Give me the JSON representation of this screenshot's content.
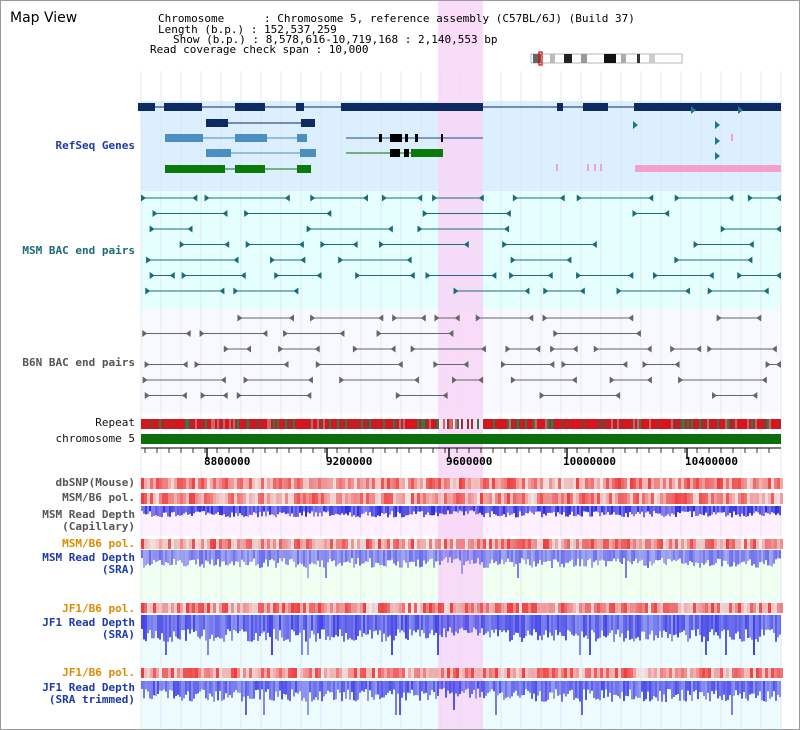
{
  "header": {
    "title": "Map View",
    "info_lines": [
      "Chromosome      : Chromosome 5, reference assembly (C57BL/6J) (Build 37)",
      "Length (b.p.) : 152,537,259",
      "Show (b.p.) : 8,578,616-10,719,168 : 2,140,553 bp",
      "Read coverage check span : 10,000"
    ]
  },
  "tracks": {
    "refseq": "RefSeq Genes",
    "msm_bac": "MSM BAC end pairs",
    "b6n_bac": "B6N BAC end pairs",
    "repeat": "Repeat",
    "chromosome": "chromosome 5",
    "dbsnp": "dbSNP(Mouse)",
    "msm_b6_pol": "MSM/B6 pol.",
    "msm_read_depth_cap_1": "MSM Read Depth",
    "msm_read_depth_cap_2": "(Capillary)",
    "msm_b6_pol_2": "MSM/B6 pol.",
    "msm_read_depth_sra_1": "MSM Read Depth",
    "msm_read_depth_sra_2": "(SRA)",
    "jf1_b6_pol": "JF1/B6 pol.",
    "jf1_read_depth_sra_1": "JF1 Read Depth",
    "jf1_read_depth_sra_2": "(SRA)",
    "jf1_b6_pol_2": "JF1/B6 pol.",
    "jf1_read_depth_trim_1": "JF1 Read Depth",
    "jf1_read_depth_trim_2": "(SRA trimmed)"
  },
  "ruler": {
    "ticks": [
      "8800000",
      "9200000",
      "9600000",
      "10000000",
      "10400000"
    ]
  },
  "colors": {
    "refseq_bg": "#dcefff",
    "bac_bg": "#e5ffff",
    "highlight": "#f7d6f7",
    "gene_dark": "#0d2a63",
    "chrom_green": "#0a6e0a",
    "depth_blue": "#2b2bdd"
  }
}
